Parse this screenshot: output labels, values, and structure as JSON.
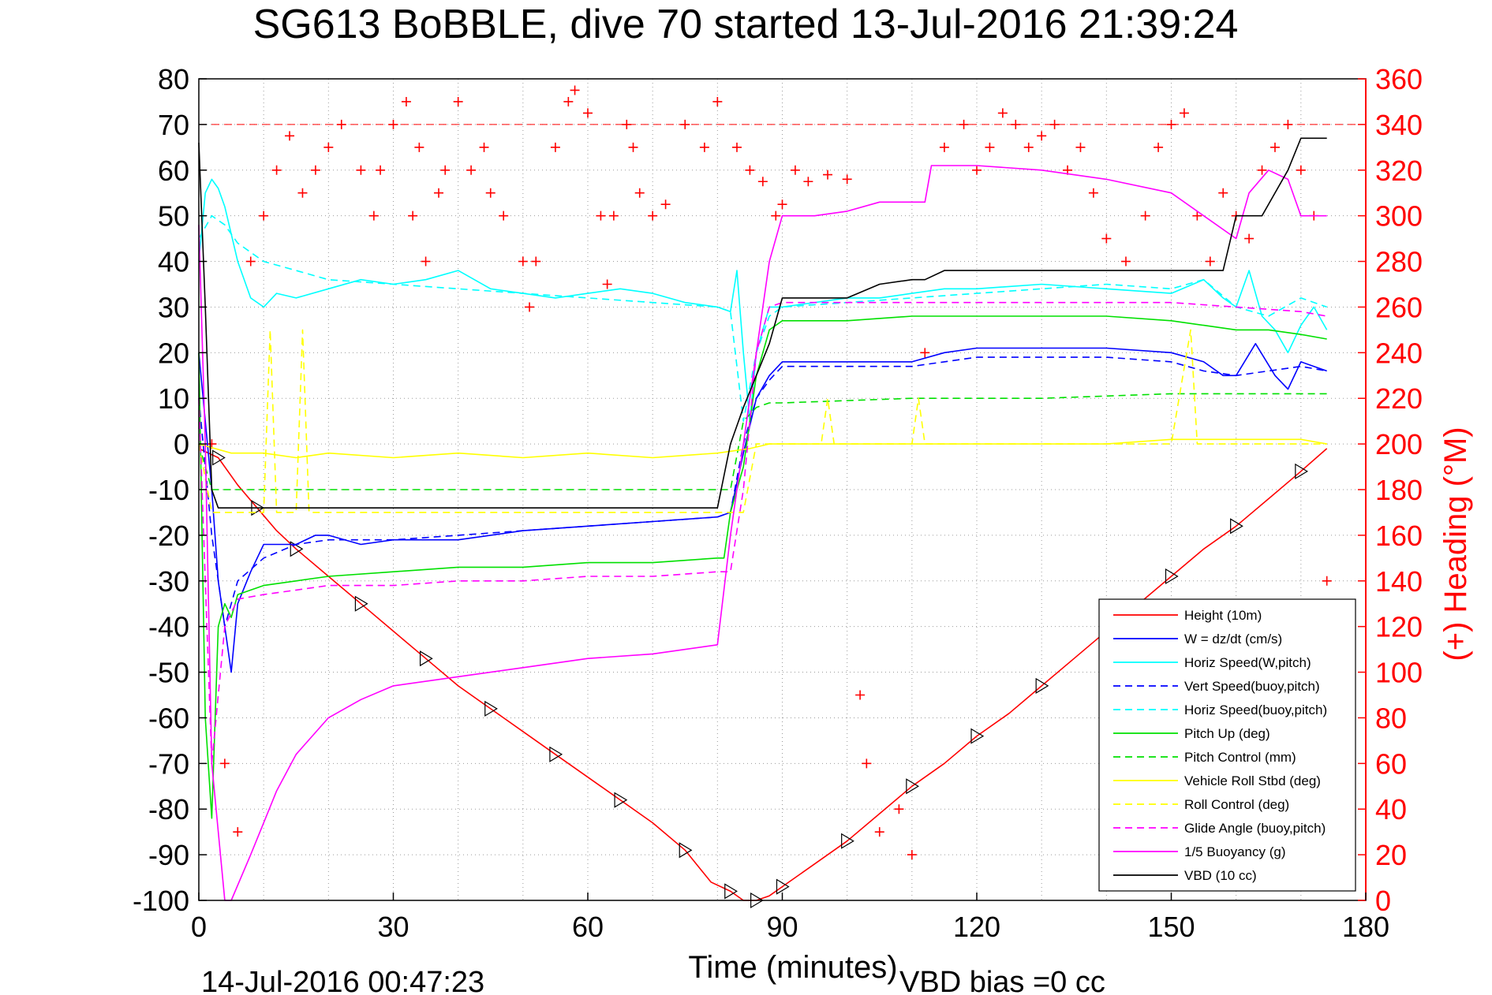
{
  "chart_data": {
    "type": "line",
    "title": "SG613 BoBBLE, dive 70 started 13-Jul-2016 21:39:24",
    "xlabel": "Time (minutes)",
    "ylabel_right": "(+) Heading (°M)",
    "footer_left": "14-Jul-2016 00:47:23",
    "footer_right": "VBD bias =0 cc",
    "xlim": [
      0,
      180
    ],
    "xticks": [
      0,
      30,
      60,
      90,
      120,
      150,
      180
    ],
    "ylim": [
      -100,
      80
    ],
    "yticks": [
      80,
      70,
      60,
      50,
      40,
      30,
      20,
      10,
      0,
      -10,
      -20,
      -30,
      -40,
      -50,
      -60,
      -70,
      -80,
      -90,
      -100
    ],
    "ylim_right": [
      0,
      360
    ],
    "yticks_right": [
      360,
      340,
      320,
      300,
      280,
      260,
      240,
      220,
      200,
      180,
      160,
      140,
      120,
      100,
      80,
      60,
      40,
      20,
      0
    ],
    "grid": true,
    "legend_position": "lower-right",
    "colors": {
      "red": "#ff0000",
      "blue": "#0000ff",
      "cyan": "#00ffff",
      "green": "#00e000",
      "yellow": "#ffff00",
      "magenta": "#ff00ff",
      "black": "#000000"
    },
    "series": [
      {
        "name": "Height (10m)",
        "color": "#ff0000",
        "style": "solid",
        "x": [
          0,
          3,
          6,
          9,
          12,
          15,
          20,
          25,
          30,
          35,
          40,
          45,
          50,
          55,
          60,
          65,
          70,
          75,
          79,
          82,
          84,
          86,
          88,
          90,
          95,
          100,
          105,
          110,
          115,
          120,
          125,
          130,
          135,
          140,
          145,
          150,
          155,
          160,
          165,
          170,
          174
        ],
        "y": [
          -1,
          -3,
          -9,
          -14,
          -19,
          -23,
          -29,
          -35,
          -41,
          -47,
          -53,
          -58,
          -63,
          -68,
          -73,
          -78,
          -83,
          -89,
          -96,
          -98,
          -100,
          -100,
          -99,
          -97,
          -92,
          -87,
          -81,
          -75,
          -70,
          -64,
          -59,
          -53,
          -47,
          -41,
          -35,
          -29,
          -23,
          -18,
          -12,
          -6,
          -1
        ]
      },
      {
        "name": "W = dz/dt (cm/s)",
        "color": "#0000ff",
        "style": "solid",
        "x": [
          0,
          1,
          2,
          3,
          4,
          5,
          6,
          8,
          10,
          12,
          15,
          18,
          20,
          25,
          30,
          40,
          50,
          60,
          70,
          80,
          82,
          84,
          86,
          88,
          90,
          95,
          100,
          105,
          110,
          115,
          120,
          130,
          140,
          150,
          155,
          158,
          160,
          163,
          166,
          168,
          170,
          172,
          174
        ],
        "y": [
          20,
          5,
          -10,
          -30,
          -40,
          -50,
          -35,
          -28,
          -22,
          -22,
          -22,
          -20,
          -20,
          -22,
          -21,
          -21,
          -19,
          -18,
          -17,
          -16,
          -15,
          -2,
          10,
          15,
          18,
          18,
          18,
          18,
          18,
          20,
          21,
          21,
          21,
          20,
          18,
          15,
          15,
          22,
          15,
          12,
          18,
          17,
          16
        ]
      },
      {
        "name": "Horiz Speed(W,pitch)",
        "color": "#00ffff",
        "style": "solid",
        "x": [
          0,
          1,
          2,
          3,
          4,
          6,
          8,
          10,
          12,
          15,
          20,
          25,
          30,
          35,
          40,
          45,
          50,
          55,
          60,
          65,
          70,
          75,
          80,
          82,
          83,
          84,
          85,
          86,
          88,
          90,
          95,
          100,
          105,
          110,
          115,
          120,
          130,
          140,
          150,
          155,
          158,
          160,
          162,
          164,
          166,
          168,
          170,
          172,
          174
        ],
        "y": [
          40,
          55,
          58,
          56,
          52,
          40,
          32,
          30,
          33,
          32,
          34,
          36,
          35,
          36,
          38,
          34,
          33,
          32,
          33,
          34,
          33,
          31,
          30,
          29,
          38,
          20,
          5,
          20,
          30,
          30,
          31,
          32,
          32,
          33,
          34,
          34,
          35,
          34,
          33,
          36,
          32,
          30,
          38,
          28,
          25,
          20,
          26,
          30,
          25
        ]
      },
      {
        "name": "Vert Speed(buoy,pitch)",
        "color": "#0000ff",
        "style": "dashed",
        "x": [
          0,
          2,
          4,
          6,
          10,
          15,
          20,
          30,
          40,
          50,
          60,
          70,
          80,
          82,
          84,
          86,
          88,
          90,
          100,
          110,
          120,
          130,
          140,
          150,
          155,
          160,
          165,
          170,
          174
        ],
        "y": [
          10,
          -20,
          -40,
          -30,
          -25,
          -22,
          -21,
          -21,
          -20,
          -19,
          -18,
          -17,
          -16,
          -15,
          0,
          10,
          14,
          17,
          17,
          17,
          19,
          19,
          19,
          18,
          16,
          15,
          16,
          17,
          16
        ]
      },
      {
        "name": "Horiz Speed(buoy,pitch)",
        "color": "#00ffff",
        "style": "dashed",
        "x": [
          0,
          2,
          4,
          6,
          10,
          15,
          20,
          30,
          40,
          50,
          60,
          70,
          80,
          82,
          84,
          86,
          88,
          90,
          100,
          110,
          120,
          130,
          140,
          150,
          155,
          160,
          165,
          170,
          174
        ],
        "y": [
          45,
          50,
          48,
          44,
          40,
          38,
          36,
          35,
          34,
          33,
          32,
          31,
          30,
          29,
          5,
          20,
          28,
          30,
          31,
          32,
          33,
          34,
          35,
          34,
          36,
          30,
          28,
          32,
          30
        ]
      },
      {
        "name": "Pitch Up (deg)",
        "color": "#00e000",
        "style": "solid",
        "x": [
          0,
          1,
          2,
          3,
          4,
          5,
          6,
          8,
          10,
          15,
          20,
          30,
          40,
          50,
          60,
          70,
          80,
          81,
          82,
          84,
          86,
          88,
          90,
          100,
          110,
          120,
          130,
          140,
          150,
          155,
          160,
          165,
          170,
          174
        ],
        "y": [
          20,
          -60,
          -82,
          -40,
          -35,
          -38,
          -33,
          -32,
          -31,
          -30,
          -29,
          -28,
          -27,
          -27,
          -26,
          -26,
          -25,
          -25,
          -15,
          -5,
          15,
          25,
          27,
          27,
          28,
          28,
          28,
          28,
          27,
          26,
          25,
          25,
          24,
          23
        ]
      },
      {
        "name": "Pitch Control (mm)",
        "color": "#00e000",
        "style": "dashed",
        "x": [
          0,
          2,
          3,
          5,
          10,
          20,
          40,
          60,
          80,
          82,
          84,
          86,
          88,
          90,
          110,
          130,
          150,
          174
        ],
        "y": [
          0,
          -10,
          -10,
          -10,
          -10,
          -10,
          -10,
          -10,
          -10,
          -10,
          5,
          8,
          9,
          9,
          10,
          10,
          11,
          11
        ]
      },
      {
        "name": "Vehicle Roll Stbd (deg)",
        "color": "#ffff00",
        "style": "solid",
        "x": [
          0,
          5,
          10,
          15,
          20,
          30,
          40,
          50,
          60,
          70,
          80,
          85,
          88,
          90,
          100,
          110,
          120,
          130,
          140,
          150,
          160,
          170,
          174
        ],
        "y": [
          0,
          -2,
          -2,
          -3,
          -2,
          -3,
          -2,
          -3,
          -2,
          -3,
          -2,
          -1,
          0,
          0,
          0,
          0,
          0,
          0,
          0,
          1,
          1,
          1,
          0
        ]
      },
      {
        "name": "Roll Control (deg)",
        "color": "#ffff00",
        "style": "dashed",
        "x": [
          0,
          2,
          4,
          8,
          10,
          11,
          12,
          15,
          16,
          17,
          20,
          40,
          60,
          80,
          84,
          86,
          88,
          96,
          97,
          98,
          110,
          111,
          112,
          120,
          150,
          153,
          154,
          155,
          170,
          174
        ],
        "y": [
          0,
          -15,
          -15,
          -15,
          -15,
          25,
          -15,
          -15,
          25,
          -15,
          -15,
          -15,
          -15,
          -15,
          -15,
          0,
          0,
          0,
          10,
          0,
          0,
          10,
          0,
          0,
          0,
          25,
          0,
          0,
          0,
          0
        ]
      },
      {
        "name": "Glide Angle (buoy,pitch)",
        "color": "#ff00ff",
        "style": "dashed",
        "x": [
          0,
          2,
          4,
          6,
          10,
          15,
          20,
          30,
          40,
          50,
          60,
          70,
          80,
          82,
          84,
          86,
          88,
          90,
          100,
          110,
          120,
          130,
          140,
          150,
          160,
          170,
          174
        ],
        "y": [
          10,
          -70,
          -40,
          -34,
          -33,
          -32,
          -31,
          -31,
          -30,
          -30,
          -29,
          -29,
          -28,
          -28,
          -10,
          20,
          30,
          31,
          31,
          31,
          31,
          31,
          31,
          31,
          30,
          29,
          28
        ]
      },
      {
        "name": "1/5 Buoyancy (g)",
        "color": "#ff00ff",
        "style": "solid",
        "x": [
          0,
          1,
          2,
          4,
          5,
          8,
          10,
          12,
          15,
          20,
          25,
          30,
          40,
          50,
          60,
          70,
          80,
          82,
          84,
          86,
          88,
          90,
          95,
          100,
          105,
          110,
          112,
          113,
          120,
          130,
          140,
          150,
          155,
          160,
          162,
          165,
          168,
          170,
          174
        ],
        "y": [
          48,
          0,
          -70,
          -100,
          -100,
          -90,
          -83,
          -76,
          -68,
          -60,
          -56,
          -53,
          -51,
          -49,
          -47,
          -46,
          -44,
          -20,
          0,
          20,
          40,
          50,
          50,
          51,
          53,
          53,
          53,
          61,
          61,
          60,
          58,
          55,
          50,
          45,
          55,
          60,
          58,
          50,
          50
        ]
      },
      {
        "name": "VBD (10 cc)",
        "color": "#000000",
        "style": "solid",
        "x": [
          0,
          1,
          2,
          3,
          10,
          20,
          40,
          60,
          80,
          82,
          84,
          86,
          88,
          90,
          95,
          100,
          105,
          110,
          112,
          115,
          120,
          130,
          140,
          150,
          158,
          160,
          164,
          168,
          170,
          174
        ],
        "y": [
          66,
          30,
          -10,
          -14,
          -14,
          -14,
          -14,
          -14,
          -14,
          0,
          8,
          15,
          22,
          32,
          32,
          32,
          35,
          36,
          36,
          38,
          38,
          38,
          38,
          38,
          38,
          50,
          50,
          60,
          67,
          67
        ]
      }
    ],
    "heading_samples": {
      "name": "Heading (°M)",
      "marker": "+",
      "color": "#ff0000",
      "axis": "right",
      "x": [
        2,
        4,
        6,
        8,
        10,
        12,
        14,
        16,
        18,
        20,
        22,
        25,
        27,
        28,
        30,
        32,
        33,
        34,
        35,
        37,
        38,
        40,
        42,
        44,
        45,
        47,
        50,
        51,
        52,
        55,
        57,
        58,
        60,
        62,
        63,
        64,
        66,
        67,
        68,
        70,
        72,
        75,
        78,
        80,
        83,
        85,
        87,
        89,
        90,
        92,
        94,
        97,
        100,
        102,
        103,
        105,
        108,
        110,
        112,
        115,
        118,
        120,
        122,
        124,
        126,
        128,
        130,
        132,
        134,
        136,
        138,
        140,
        143,
        146,
        148,
        150,
        152,
        154,
        156,
        158,
        160,
        162,
        164,
        166,
        168,
        170,
        172,
        174
      ],
      "y": [
        200,
        60,
        30,
        280,
        300,
        320,
        335,
        310,
        320,
        330,
        340,
        320,
        300,
        320,
        340,
        350,
        300,
        330,
        280,
        310,
        320,
        350,
        320,
        330,
        310,
        300,
        280,
        260,
        280,
        330,
        350,
        355,
        345,
        300,
        270,
        300,
        340,
        330,
        310,
        300,
        305,
        340,
        330,
        350,
        330,
        320,
        315,
        300,
        305,
        320,
        315,
        318,
        316,
        90,
        60,
        30,
        40,
        20,
        240,
        330,
        340,
        320,
        330,
        345,
        340,
        330,
        335,
        340,
        320,
        330,
        310,
        290,
        280,
        300,
        330,
        340,
        345,
        300,
        280,
        310,
        300,
        290,
        320,
        330,
        340,
        320,
        300,
        140
      ]
    }
  }
}
